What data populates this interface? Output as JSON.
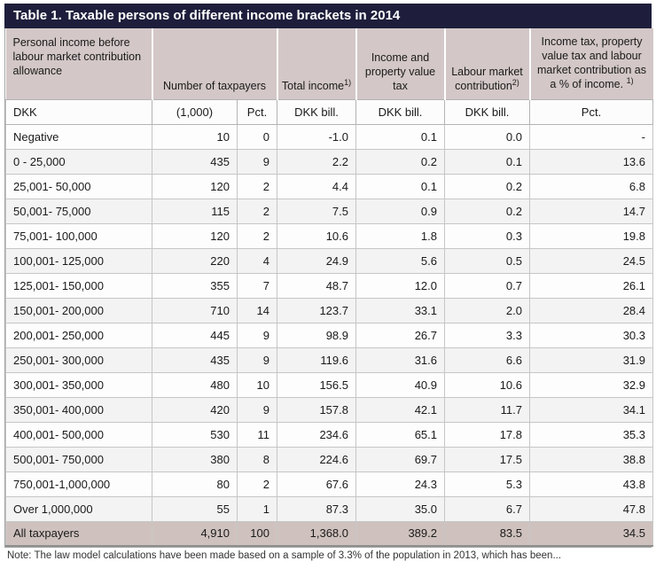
{
  "title": "Table 1. Taxable persons of different income brackets in 2014",
  "colors": {
    "title_bar_bg": "#1e1e3c",
    "header_bg": "#d3c7c7",
    "total_row_bg": "#cfc2be",
    "stripe_bg": "#f3f3f3",
    "grid": "#c6c6c6"
  },
  "table": {
    "header": {
      "personal_income": "Personal income before labour market contribution allowance",
      "number_of_taxpayers": "Number of taxpayers",
      "total_income": {
        "text": "Total income",
        "sup": "1)"
      },
      "income_property_tax": "Income and property value tax",
      "labour_market": {
        "text": "Labour market contribution",
        "sup": "2)"
      },
      "combined_pct": {
        "text": "Income tax, property value tax and labour market contribution as a % of income. ",
        "sup": "1)"
      }
    },
    "units": [
      "DKK",
      "(1,000)",
      "Pct.",
      "DKK bill.",
      "DKK bill.",
      "DKK bill.",
      "Pct."
    ],
    "rows": [
      [
        "Negative",
        "10",
        "0",
        "-1.0",
        "0.1",
        "0.0",
        "-"
      ],
      [
        "0 - 25,000",
        "435",
        "9",
        "2.2",
        "0.2",
        "0.1",
        "13.6"
      ],
      [
        "25,001- 50,000",
        "120",
        "2",
        "4.4",
        "0.1",
        "0.2",
        "6.8"
      ],
      [
        "50,001- 75,000",
        "115",
        "2",
        "7.5",
        "0.9",
        "0.2",
        "14.7"
      ],
      [
        "75,001- 100,000",
        "120",
        "2",
        "10.6",
        "1.8",
        "0.3",
        "19.8"
      ],
      [
        "100,001- 125,000",
        "220",
        "4",
        "24.9",
        "5.6",
        "0.5",
        "24.5"
      ],
      [
        "125,001- 150,000",
        "355",
        "7",
        "48.7",
        "12.0",
        "0.7",
        "26.1"
      ],
      [
        "150,001- 200,000",
        "710",
        "14",
        "123.7",
        "33.1",
        "2.0",
        "28.4"
      ],
      [
        "200,001- 250,000",
        "445",
        "9",
        "98.9",
        "26.7",
        "3.3",
        "30.3"
      ],
      [
        "250,001- 300,000",
        "435",
        "9",
        "119.6",
        "31.6",
        "6.6",
        "31.9"
      ],
      [
        "300,001- 350,000",
        "480",
        "10",
        "156.5",
        "40.9",
        "10.6",
        "32.9"
      ],
      [
        "350,001- 400,000",
        "420",
        "9",
        "157.8",
        "42.1",
        "11.7",
        "34.1"
      ],
      [
        "400,001- 500,000",
        "530",
        "11",
        "234.6",
        "65.1",
        "17.8",
        "35.3"
      ],
      [
        "500,001- 750,000",
        "380",
        "8",
        "224.6",
        "69.7",
        "17.5",
        "38.8"
      ],
      [
        "750,001-1,000,000",
        "80",
        "2",
        "67.6",
        "24.3",
        "5.3",
        "43.8"
      ],
      [
        "Over 1,000,000",
        "55",
        "1",
        "87.3",
        "35.0",
        "6.7",
        "47.8"
      ]
    ],
    "total_row": [
      "All taxpayers",
      "4,910",
      "100",
      "1,368.0",
      "389.2",
      "83.5",
      "34.5"
    ]
  },
  "note": "Note: The law model calculations have been made based on a sample of 3.3% of the population in 2013, which has been..."
}
